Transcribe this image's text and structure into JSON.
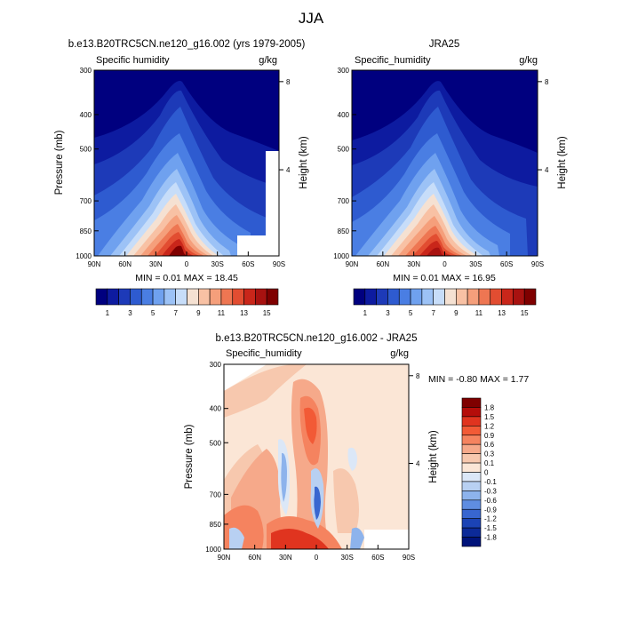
{
  "page_title": "JJA",
  "chart_data": [
    {
      "type": "heatmap",
      "title": "b.e13.B20TRC5CN.ne120_g16.002 (yrs 1979-2005)",
      "left_subtitle": "Specific humidity",
      "right_subtitle": "g/kg",
      "ylabel": "Pressure (mb)",
      "ylabel_right": "Height (km)",
      "x_ticks": [
        "90N",
        "60N",
        "30N",
        "0",
        "30S",
        "60S",
        "90S"
      ],
      "y_ticks": [
        "300",
        "400",
        "500",
        "700",
        "850",
        "1000"
      ],
      "height_ticks": [
        "8",
        "4"
      ],
      "ylim": [
        1000,
        300
      ],
      "min_max_text": "MIN =  0.01  MAX =  18.45",
      "min": 0.01,
      "max": 18.45,
      "colorbar_labels": [
        "1",
        "3",
        "5",
        "7",
        "9",
        "11",
        "13",
        "15"
      ],
      "colorbar_colors": [
        "#00007f",
        "#0d1ba0",
        "#1d3ab8",
        "#2e5bd0",
        "#4a7ee3",
        "#6fa1ef",
        "#9cc2f6",
        "#c7ddf9",
        "#f5e1d2",
        "#f8c1a4",
        "#f59f7b",
        "#ee7652",
        "#e24d31",
        "#c9261a",
        "#a81210",
        "#7f0000"
      ]
    },
    {
      "type": "heatmap",
      "title": "JRA25",
      "left_subtitle": "Specific_humidity",
      "right_subtitle": "g/kg",
      "ylabel": "",
      "ylabel_right": "Height (km)",
      "x_ticks": [
        "90N",
        "60N",
        "30N",
        "0",
        "30S",
        "60S",
        "90S"
      ],
      "y_ticks": [
        "300",
        "400",
        "500",
        "700",
        "850",
        "1000"
      ],
      "height_ticks": [
        "8",
        "4"
      ],
      "ylim": [
        1000,
        300
      ],
      "min_max_text": "MIN =  0.01  MAX =  16.95",
      "min": 0.01,
      "max": 16.95,
      "colorbar_labels": [
        "1",
        "3",
        "5",
        "7",
        "9",
        "11",
        "13",
        "15"
      ],
      "colorbar_colors": [
        "#00007f",
        "#0d1ba0",
        "#1d3ab8",
        "#2e5bd0",
        "#4a7ee3",
        "#6fa1ef",
        "#9cc2f6",
        "#c7ddf9",
        "#f5e1d2",
        "#f8c1a4",
        "#f59f7b",
        "#ee7652",
        "#e24d31",
        "#c9261a",
        "#a81210",
        "#7f0000"
      ]
    },
    {
      "type": "heatmap",
      "title": "b.e13.B20TRC5CN.ne120_g16.002 - JRA25",
      "left_subtitle": "Specific_humidity",
      "right_subtitle": "g/kg",
      "ylabel": "Pressure (mb)",
      "ylabel_right": "Height (km)",
      "x_ticks": [
        "90N",
        "60N",
        "30N",
        "0",
        "30S",
        "60S",
        "90S"
      ],
      "y_ticks": [
        "300",
        "400",
        "500",
        "700",
        "850",
        "1000"
      ],
      "height_ticks": [
        "8",
        "4"
      ],
      "ylim": [
        1000,
        300
      ],
      "min_max_text": "MIN = -0.80  MAX =   1.77",
      "min": -0.8,
      "max": 1.77,
      "colorbar_labels": [
        "1.8",
        "1.5",
        "1.2",
        "0.9",
        "0.6",
        "0.3",
        "0.1",
        "0",
        "-0.1",
        "-0.3",
        "-0.6",
        "-0.9",
        "-1.2",
        "-1.5",
        "-1.8"
      ],
      "colorbar_colors": [
        "#7f0000",
        "#b50d0a",
        "#e0341f",
        "#f25a36",
        "#f5835f",
        "#f6a98a",
        "#f7c8ae",
        "#fbe6d6",
        "#dbe7f7",
        "#b8d0f2",
        "#8db3ec",
        "#5f8de1",
        "#3866d0",
        "#1b43b5",
        "#0c2a98",
        "#00137a"
      ]
    }
  ]
}
